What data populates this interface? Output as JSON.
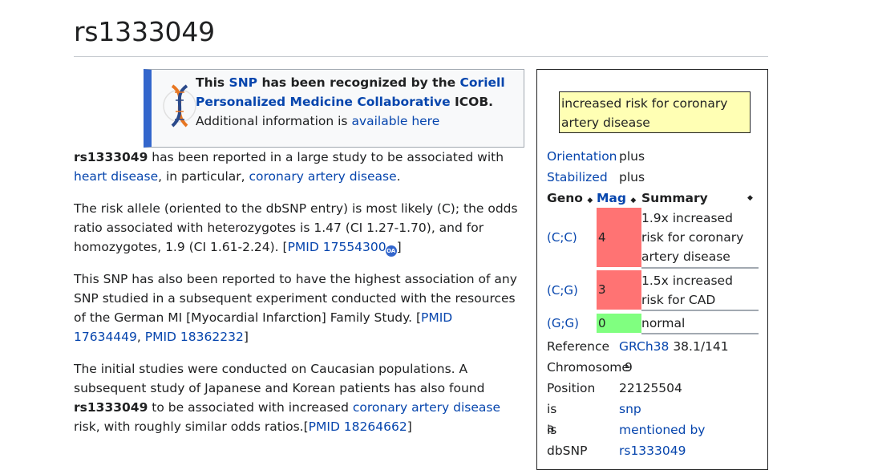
{
  "title": "rs1333049",
  "notice": {
    "prefix": "This ",
    "snp_link": "SNP",
    "middle": " has been recognized by the ",
    "coriell_link": "Coriell Personalized Medicine Collaborative",
    "suffix": " ICOB.",
    "additional": "Additional information is ",
    "available_link": "available here"
  },
  "article": {
    "p1": {
      "rs": "rs1333049",
      "text1": " has been reported in a large study to be associated with ",
      "heart_link": "heart disease",
      "text2": ", in particular, ",
      "cad_link": "coronary artery disease",
      "text3": "."
    },
    "p2": {
      "text": "The risk allele (oriented to the dbSNP entry) is most likely (C); the odds ratio associated with heterozygotes is 1.47 (CI 1.27-1.70), and for homozygotes, 1.9 (CI 1.61-2.24). [",
      "pmid": "PMID 17554300",
      "oa": "OA",
      "close": "]"
    },
    "p3": {
      "text": "This SNP has also been reported to have the highest association of any SNP studied in a subsequent experiment conducted with the resources of the German MI [Myocardial Infarction] Family Study. [",
      "pmid1": "PMID 17634449",
      "sep": ", ",
      "pmid2": "PMID 18362232",
      "close": "]"
    },
    "p4": {
      "text1": "The initial studies were conducted on Caucasian populations. A subsequent study of Japanese and Korean patients has also found ",
      "rs": "rs1333049",
      "text2": " to be associated with increased ",
      "cad_link": "coronary artery disease",
      "text3": " risk, with roughly similar odds ratios.[",
      "pmid": "PMID 18264662",
      "close": "]"
    }
  },
  "infobox": {
    "summary": "increased risk for coronary artery disease",
    "orientation_key": "Orientation",
    "orientation_val": "plus",
    "stabilized_key": "Stabilized",
    "stabilized_val": "plus",
    "headers": {
      "geno": "Geno",
      "mag": "Mag",
      "summary": "Summary",
      "sort_glyph": "◆"
    },
    "rows": [
      {
        "geno": "(C;C)",
        "mag": "4",
        "summary": "1.9x increased risk for coronary artery disease",
        "color": "#ff7373"
      },
      {
        "geno": "(C;G)",
        "mag": "3",
        "summary": "1.5x increased risk for CAD",
        "color": "#ff7373"
      },
      {
        "geno": "(G;G)",
        "mag": "0",
        "summary": "normal",
        "color": "#80ff80"
      }
    ],
    "reference_key": "Reference",
    "reference_link": "GRCh38",
    "reference_val": " 38.1/141",
    "chromosome_key": "Chromosome",
    "chromosome_val": "9",
    "position_key": "Position",
    "position_val": "22125504",
    "isa_key": "is a",
    "isa_val": "snp",
    "is_key": "is",
    "is_val": "mentioned by",
    "dbsnp_key": "dbSNP",
    "dbsnp_val": "rs1333049"
  }
}
